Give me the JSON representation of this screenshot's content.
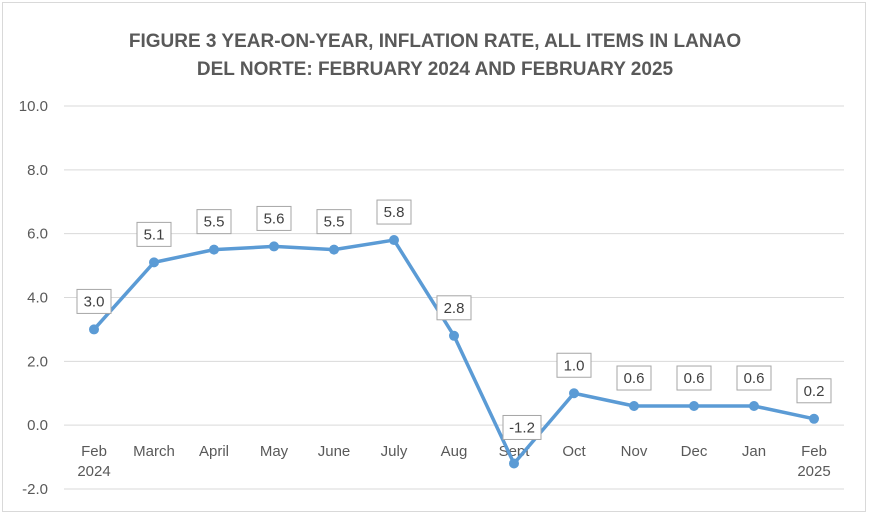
{
  "chart_data": {
    "type": "line",
    "title_lines": [
      "FIGURE 3 YEAR-ON-YEAR, INFLATION RATE, ALL ITEMS IN LANAO",
      "DEL NORTE: FEBRUARY 2024 AND FEBRUARY 2025"
    ],
    "categories": [
      [
        "Feb",
        "2024"
      ],
      [
        "March"
      ],
      [
        "April"
      ],
      [
        "May"
      ],
      [
        "June"
      ],
      [
        "July"
      ],
      [
        "Aug"
      ],
      [
        "Sept"
      ],
      [
        "Oct"
      ],
      [
        "Nov"
      ],
      [
        "Dec"
      ],
      [
        "Jan"
      ],
      [
        "Feb",
        "2025"
      ]
    ],
    "values": [
      3.0,
      5.1,
      5.5,
      5.6,
      5.5,
      5.8,
      2.8,
      -1.2,
      1.0,
      0.6,
      0.6,
      0.6,
      0.2
    ],
    "data_labels": [
      "3.0",
      "5.1",
      "5.5",
      "5.6",
      "5.5",
      "5.8",
      "2.8",
      "-1.2",
      "1.0",
      "0.6",
      "0.6",
      "0.6",
      "0.2"
    ],
    "y_ticks": [
      "-2.0",
      "0.0",
      "2.0",
      "4.0",
      "6.0",
      "8.0",
      "10.0"
    ],
    "ylim": [
      -2,
      10
    ],
    "grid": true,
    "legend": "none",
    "line_color": "#5b9bd5",
    "grid_color": "#d9d9d9",
    "label_border_color": "#a6a6a6"
  }
}
